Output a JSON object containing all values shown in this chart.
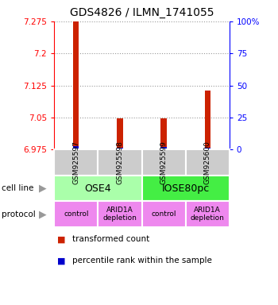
{
  "title": "GDS4826 / ILMN_1741055",
  "samples": [
    "GSM925597",
    "GSM925598",
    "GSM925599",
    "GSM925600"
  ],
  "red_tops": [
    7.275,
    7.048,
    7.048,
    7.113
  ],
  "blue_tops": [
    6.982,
    6.979,
    6.98,
    6.979
  ],
  "ymin": 6.975,
  "ymax": 7.275,
  "yticks_left": [
    6.975,
    7.05,
    7.125,
    7.2,
    7.275
  ],
  "yticks_right_vals": [
    0,
    25,
    50,
    75,
    100
  ],
  "cell_line_labels": [
    "OSE4",
    "IOSE80pc"
  ],
  "cell_line_spans": [
    [
      0,
      2
    ],
    [
      2,
      4
    ]
  ],
  "cell_line_colors": [
    "#aaffaa",
    "#44ee44"
  ],
  "protocol_labels": [
    "control",
    "ARID1A\ndepletion",
    "control",
    "ARID1A\ndepletion"
  ],
  "protocol_color": "#ee88ee",
  "legend_red_label": "transformed count",
  "legend_blue_label": "percentile rank within the sample",
  "bar_width": 0.13,
  "bar_color_red": "#cc2200",
  "bar_color_blue": "#0000cc",
  "sample_box_color": "#cccccc",
  "grid_color": "#999999",
  "sample_box_edge": "#888888"
}
